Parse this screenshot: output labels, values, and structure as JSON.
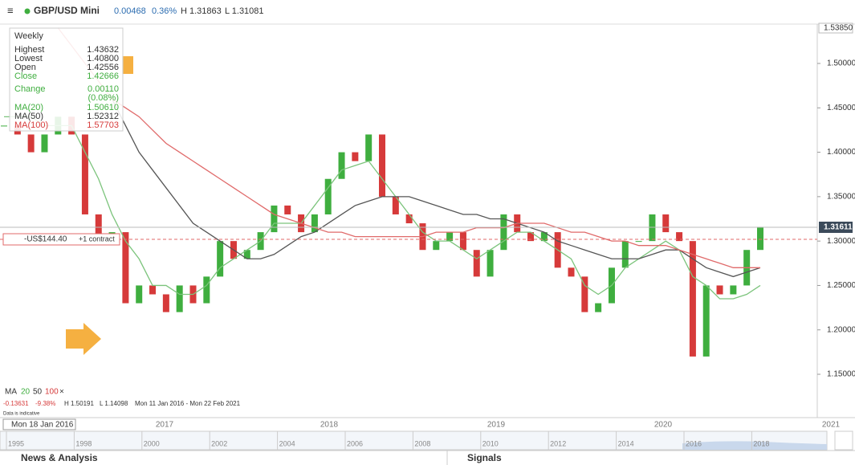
{
  "header": {
    "symbol": "GBP/USD Mini",
    "change": "0.00468",
    "change_pct": "0.36%",
    "high": "H 1.31863",
    "low": "L 1.31081"
  },
  "info_panel": {
    "interval": "Weekly",
    "rows": [
      [
        "Highest",
        "1.43632"
      ],
      [
        "Lowest",
        "1.40800"
      ],
      [
        "Open",
        "1.42556"
      ],
      [
        "Close",
        "1.42666"
      ],
      [
        "Change",
        "0.00110"
      ],
      [
        "",
        "(0.08%)"
      ],
      [
        "MA(20)",
        "1.50610"
      ],
      [
        "MA(50)",
        "1.52312"
      ],
      [
        "MA(100)",
        "1.57703"
      ]
    ]
  },
  "position": {
    "pnl": "-US$144.40",
    "size": "+1 contract"
  },
  "price_labels": {
    "top": "1.53850",
    "current": "1.31611"
  },
  "indicators": {
    "label": "MA",
    "periods": [
      "20",
      "50",
      "100"
    ],
    "close": "×"
  },
  "summary": [
    "-0.13631",
    "-9.38%",
    "H 1.50191",
    "L 1.14098",
    "Mon 11 Jan 2016 - Mon 22 Feb 2021"
  ],
  "disclaimer": "Data is indicative",
  "cursor_date": "Mon 18 Jan 2016",
  "time_axis": [
    "2017",
    "2018",
    "2019",
    "2020",
    "2021"
  ],
  "navigator_years": [
    "1995",
    "1998",
    "2000",
    "2002",
    "2004",
    "2006",
    "2008",
    "2010",
    "2012",
    "2014",
    "2016",
    "2018"
  ],
  "footer": {
    "left": "News & Analysis",
    "right": "Signals"
  },
  "chart_data": {
    "type": "candlestick",
    "up_color": "#3fae3f",
    "down_color": "#d63a3a",
    "values": [
      1.43,
      1.42,
      1.4,
      1.42,
      1.44,
      1.42,
      1.33,
      1.3,
      1.31,
      1.23,
      1.25,
      1.24,
      1.22,
      1.25,
      1.23,
      1.26,
      1.3,
      1.28,
      1.29,
      1.31,
      1.34,
      1.33,
      1.31,
      1.33,
      1.37,
      1.4,
      1.39,
      1.42,
      1.35,
      1.33,
      1.32,
      1.29,
      1.3,
      1.31,
      1.29,
      1.26,
      1.29,
      1.33,
      1.31,
      1.3,
      1.31,
      1.27,
      1.26,
      1.22,
      1.23,
      1.27,
      1.3,
      1.3,
      1.33,
      1.31,
      1.3,
      1.17,
      1.25,
      1.24,
      1.25,
      1.29,
      1.316
    ],
    "series": [
      {
        "name": "MA(20)",
        "color": "#7cc47c",
        "values": [
          1.44,
          1.44,
          1.44,
          1.43,
          1.43,
          1.43,
          1.4,
          1.37,
          1.33,
          1.3,
          1.28,
          1.25,
          1.25,
          1.24,
          1.24,
          1.25,
          1.27,
          1.28,
          1.29,
          1.3,
          1.32,
          1.32,
          1.32,
          1.34,
          1.36,
          1.38,
          1.385,
          1.39,
          1.37,
          1.35,
          1.33,
          1.31,
          1.3,
          1.3,
          1.29,
          1.28,
          1.29,
          1.3,
          1.31,
          1.31,
          1.3,
          1.29,
          1.28,
          1.25,
          1.24,
          1.25,
          1.27,
          1.28,
          1.29,
          1.3,
          1.29,
          1.26,
          1.25,
          1.235,
          1.235,
          1.24,
          1.25
        ]
      },
      {
        "name": "MA(50)",
        "color": "#555555",
        "values": [
          null,
          null,
          null,
          null,
          null,
          null,
          null,
          null,
          1.46,
          1.43,
          1.4,
          1.38,
          1.36,
          1.34,
          1.32,
          1.31,
          1.3,
          1.29,
          1.28,
          1.28,
          1.285,
          1.295,
          1.305,
          1.31,
          1.32,
          1.33,
          1.34,
          1.345,
          1.35,
          1.35,
          1.35,
          1.345,
          1.34,
          1.335,
          1.33,
          1.33,
          1.325,
          1.325,
          1.32,
          1.315,
          1.31,
          1.3,
          1.295,
          1.29,
          1.285,
          1.28,
          1.28,
          1.28,
          1.285,
          1.29,
          1.29,
          1.28,
          1.27,
          1.265,
          1.26,
          1.265,
          1.27
        ]
      },
      {
        "name": "MA(100)",
        "color": "#e06a6a",
        "values": [
          null,
          null,
          null,
          null,
          1.54,
          1.52,
          1.5,
          1.48,
          1.46,
          1.45,
          1.44,
          1.425,
          1.41,
          1.4,
          1.39,
          1.38,
          1.37,
          1.36,
          1.35,
          1.34,
          1.33,
          1.325,
          1.32,
          1.315,
          1.31,
          1.31,
          1.305,
          1.305,
          1.305,
          1.305,
          1.305,
          1.305,
          1.31,
          1.31,
          1.31,
          1.315,
          1.315,
          1.315,
          1.32,
          1.32,
          1.32,
          1.315,
          1.31,
          1.31,
          1.305,
          1.3,
          1.3,
          1.295,
          1.295,
          1.295,
          1.29,
          1.285,
          1.28,
          1.275,
          1.27,
          1.27,
          1.27
        ]
      }
    ],
    "ylim": [
      1.1238,
      1.5443
    ],
    "yticks": [
      {
        "value": 1.15,
        "label": "1.15000"
      },
      {
        "value": 1.2,
        "label": "1.20000"
      },
      {
        "value": 1.25,
        "label": "1.25000"
      },
      {
        "value": 1.3,
        "label": "1.30000"
      },
      {
        "value": 1.35,
        "label": "1.35000"
      },
      {
        "value": 1.4,
        "label": "1.40000"
      },
      {
        "value": 1.45,
        "label": "1.45000"
      },
      {
        "value": 1.5,
        "label": "1.50000"
      }
    ]
  }
}
